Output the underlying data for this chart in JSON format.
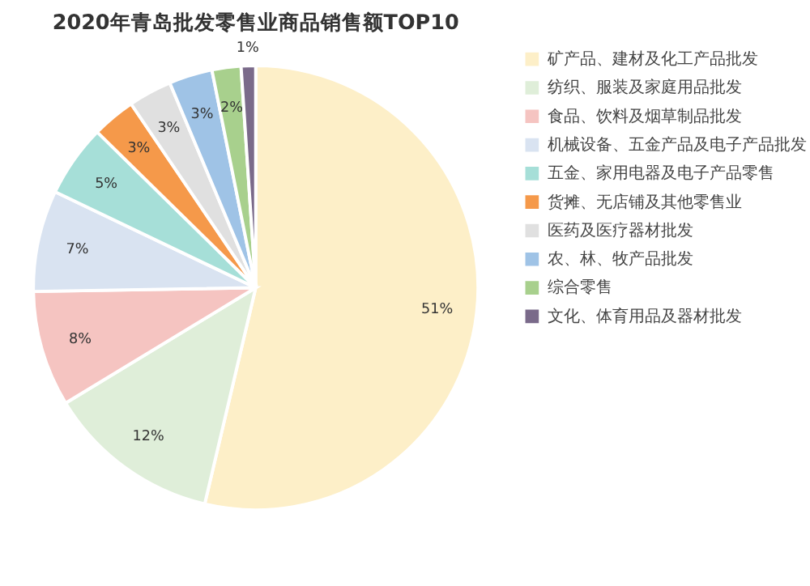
{
  "chart_data": {
    "type": "pie",
    "title": "2020年青岛批发零售业商品销售额TOP10",
    "categories": [
      "矿产品、建材及化工产品批发",
      "纺织、服装及家庭用品批发",
      "食品、饮料及烟草制品批发",
      "机械设备、五金产品及电子产品批发",
      "五金、家用电器及电子产品零售",
      "货摊、无店铺及其他零售业",
      "医药及医疗器材批发",
      "农、林、牧产品批发",
      "综合零售",
      "文化、体育用品及器材批发"
    ],
    "values": [
      51,
      12,
      8,
      7,
      5,
      3,
      3,
      3,
      2,
      1
    ],
    "value_labels": [
      "51%",
      "12%",
      "8%",
      "7%",
      "5%",
      "3%",
      "3%",
      "3%",
      "2%",
      "1%"
    ],
    "colors": [
      "#fdefc8",
      "#dfeed9",
      "#f5c4c1",
      "#d9e3f1",
      "#a6dfd8",
      "#f5994a",
      "#e0e0e0",
      "#9fc3e6",
      "#a8d08d",
      "#7a6a8a"
    ],
    "legend": "right"
  }
}
